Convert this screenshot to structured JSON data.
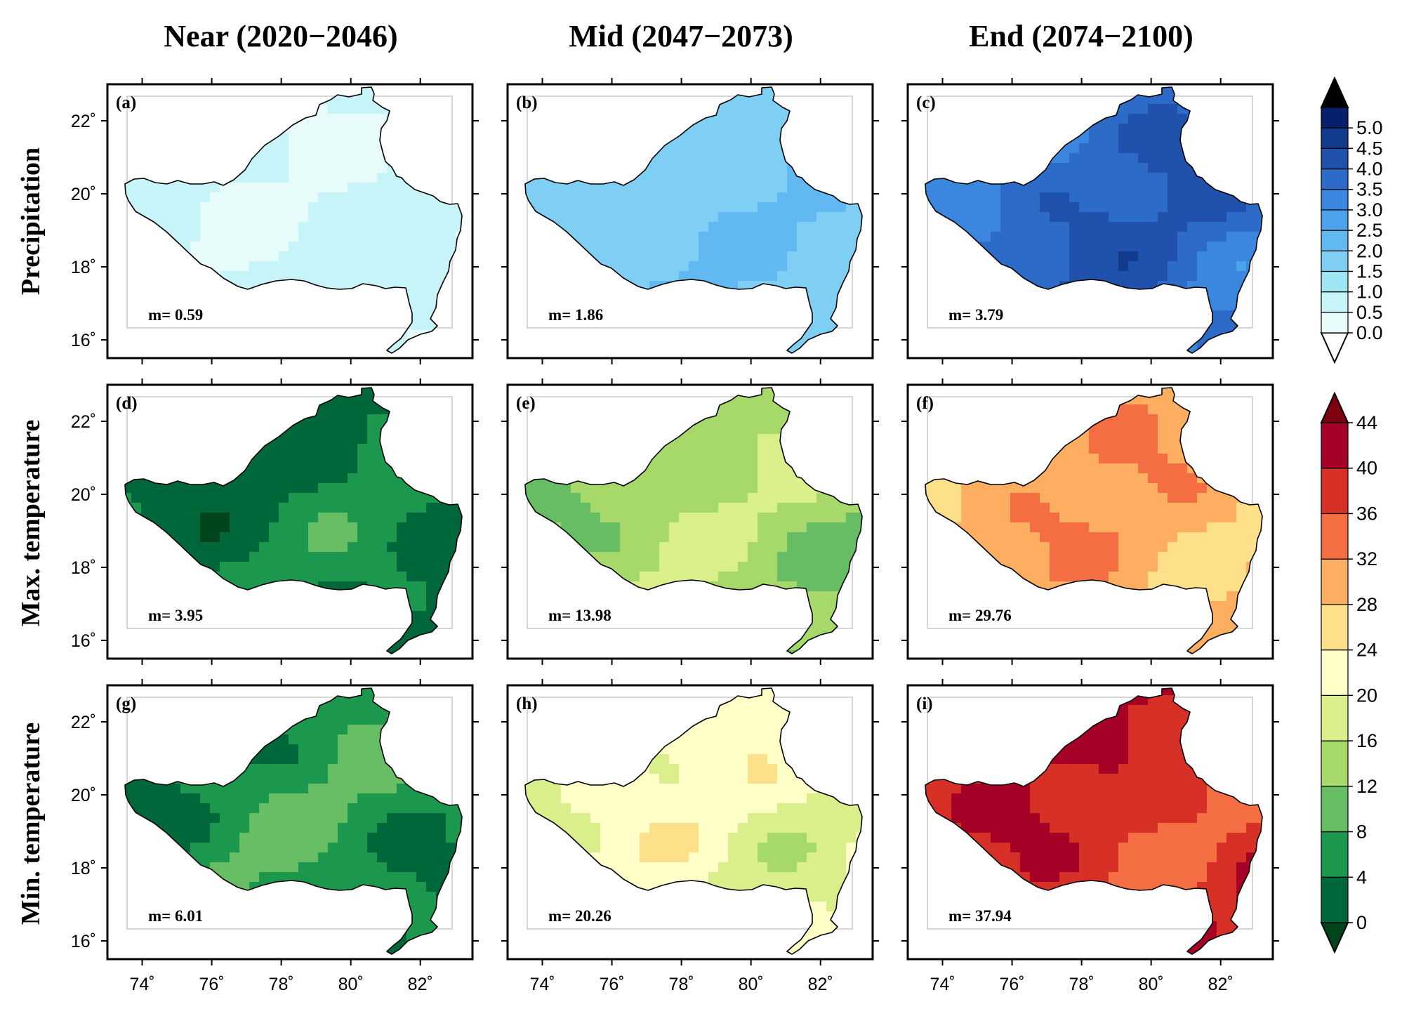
{
  "columns": [
    {
      "title": "Near (2020−2046)"
    },
    {
      "title": "Mid (2047−2073)"
    },
    {
      "title": "End (2074−2100)"
    }
  ],
  "rows": [
    {
      "title": "Precipitation",
      "colorbar": "precip"
    },
    {
      "title": "Max. temperature",
      "colorbar": "temp"
    },
    {
      "title": "Min. temperature",
      "colorbar": "temp"
    }
  ],
  "panels": [
    {
      "label": "(a)",
      "mean_text": "m= 0.59",
      "mean": 0.59
    },
    {
      "label": "(b)",
      "mean_text": "m=  1.86",
      "mean": 1.86
    },
    {
      "label": "(c)",
      "mean_text": "m= 3.79",
      "mean": 3.79
    },
    {
      "label": "(d)",
      "mean_text": "m= 3.95",
      "mean": 3.95
    },
    {
      "label": "(e)",
      "mean_text": "m= 13.98",
      "mean": 13.98
    },
    {
      "label": "(f)",
      "mean_text": "m= 29.76",
      "mean": 29.76
    },
    {
      "label": "(g)",
      "mean_text": "m= 6.01",
      "mean": 6.01
    },
    {
      "label": "(h)",
      "mean_text": "m= 20.26",
      "mean": 20.26
    },
    {
      "label": "(i)",
      "mean_text": "m= 37.94",
      "mean": 37.94
    }
  ],
  "axes": {
    "lon_ticks": [
      74,
      76,
      78,
      80,
      82
    ],
    "lon_tick_labels": [
      "74˚",
      "76˚",
      "78˚",
      "80˚",
      "82˚"
    ],
    "lat_ticks": [
      16,
      18,
      20,
      22
    ],
    "lat_tick_labels": [
      "16˚",
      "18˚",
      "20˚",
      "22˚"
    ],
    "lon_range": [
      73,
      83.5
    ],
    "lat_range": [
      15.5,
      23
    ]
  },
  "colorbars": {
    "precip": {
      "labels": [
        "0.0",
        "0.5",
        "1.0",
        "1.5",
        "2.0",
        "2.5",
        "3.0",
        "3.5",
        "4.0",
        "4.5",
        "5.0"
      ],
      "values": [
        0,
        0.5,
        1,
        1.5,
        2,
        2.5,
        3,
        3.5,
        4,
        4.5,
        5
      ],
      "colors": [
        "#e7fbfb",
        "#c6f4f8",
        "#9fe6f5",
        "#7fcff4",
        "#62b8f1",
        "#4da2ec",
        "#3b86de",
        "#2c6bc8",
        "#1f51ad",
        "#123a8d",
        "#06206c"
      ],
      "under_color": "#ffffff",
      "over_color": "#000000"
    },
    "temp": {
      "labels": [
        "0",
        "4",
        "8",
        "12",
        "16",
        "20",
        "24",
        "28",
        "32",
        "36",
        "40",
        "44"
      ],
      "values": [
        0,
        4,
        8,
        12,
        16,
        20,
        24,
        28,
        32,
        36,
        40,
        44
      ],
      "colors": [
        "#00673b",
        "#1b984d",
        "#66bd63",
        "#a6d96a",
        "#d9ef8b",
        "#ffffc7",
        "#fee08b",
        "#fdae61",
        "#f46d43",
        "#d73027",
        "#a50026"
      ],
      "under_color": "#00441b",
      "over_color": "#7f0010"
    }
  }
}
